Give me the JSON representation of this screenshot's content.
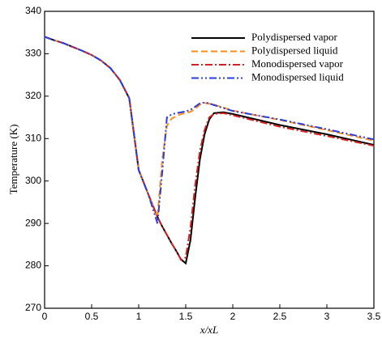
{
  "chart_data": {
    "type": "line",
    "x_label": "x/xL",
    "y_label": "Temperature (K)",
    "x": [
      0,
      0.1,
      0.2,
      0.3,
      0.4,
      0.5,
      0.6,
      0.7,
      0.8,
      0.9,
      1.0,
      1.1,
      1.2,
      1.25,
      1.3,
      1.35,
      1.4,
      1.45,
      1.5,
      1.55,
      1.6,
      1.65,
      1.7,
      1.75,
      1.8,
      1.9,
      2.0,
      2.5,
      3.0,
      3.5
    ],
    "series": [
      {
        "name": "Polydispersed vapor",
        "color": "#000000",
        "dash": "none",
        "values": [
          334,
          333.2,
          332.5,
          331.6,
          330.7,
          329.7,
          328.4,
          326.6,
          323.8,
          319.5,
          302.6,
          297,
          291.5,
          289.3,
          287.3,
          285.3,
          283.5,
          281.5,
          280.6,
          286,
          296,
          305,
          311,
          314.5,
          316,
          316.2,
          315.8,
          313.2,
          311,
          308.5
        ]
      },
      {
        "name": "Polydispersed liquid",
        "color": "#ff8c1a",
        "dash": "8,4",
        "values": [
          334,
          333.2,
          332.5,
          331.6,
          330.7,
          329.7,
          328.4,
          326.6,
          323.8,
          319.5,
          302.6,
          297,
          291.5,
          305,
          313,
          314.7,
          315.3,
          315.8,
          316,
          316.3,
          317,
          318,
          318.4,
          318.2,
          318,
          317.3,
          316.6,
          314.4,
          312,
          309.5
        ]
      },
      {
        "name": "Monodispersed vapor",
        "color": "#d62020",
        "dash": "9,3,2,3",
        "values": [
          334,
          333.2,
          332.5,
          331.6,
          330.7,
          329.7,
          328.4,
          326.6,
          323.8,
          319.5,
          302.6,
          297,
          291.5,
          289.3,
          287.3,
          285.3,
          283.5,
          281.4,
          282,
          289,
          299,
          307,
          312,
          315,
          315.8,
          316,
          315.5,
          312.8,
          310.6,
          308.3
        ]
      },
      {
        "name": "Monodispersed liquid",
        "color": "#2a3de0",
        "dash": "9,3,2,3,2,3",
        "values": [
          334,
          333.2,
          332.5,
          331.6,
          330.7,
          329.7,
          328.4,
          326.6,
          323.8,
          319.5,
          302.6,
          297,
          290,
          302,
          315,
          315.7,
          316,
          316.2,
          316.4,
          316.8,
          317.5,
          318.3,
          318.5,
          318.3,
          317.9,
          317.2,
          316.5,
          314.5,
          312.2,
          309.8
        ]
      }
    ],
    "xlim": [
      0,
      3.5
    ],
    "ylim": [
      270,
      340
    ],
    "xticks": [
      0,
      0.5,
      1,
      1.5,
      2,
      2.5,
      3,
      3.5
    ],
    "yticks": [
      270,
      280,
      290,
      300,
      310,
      320,
      330,
      340
    ],
    "legend": "upper-right"
  }
}
